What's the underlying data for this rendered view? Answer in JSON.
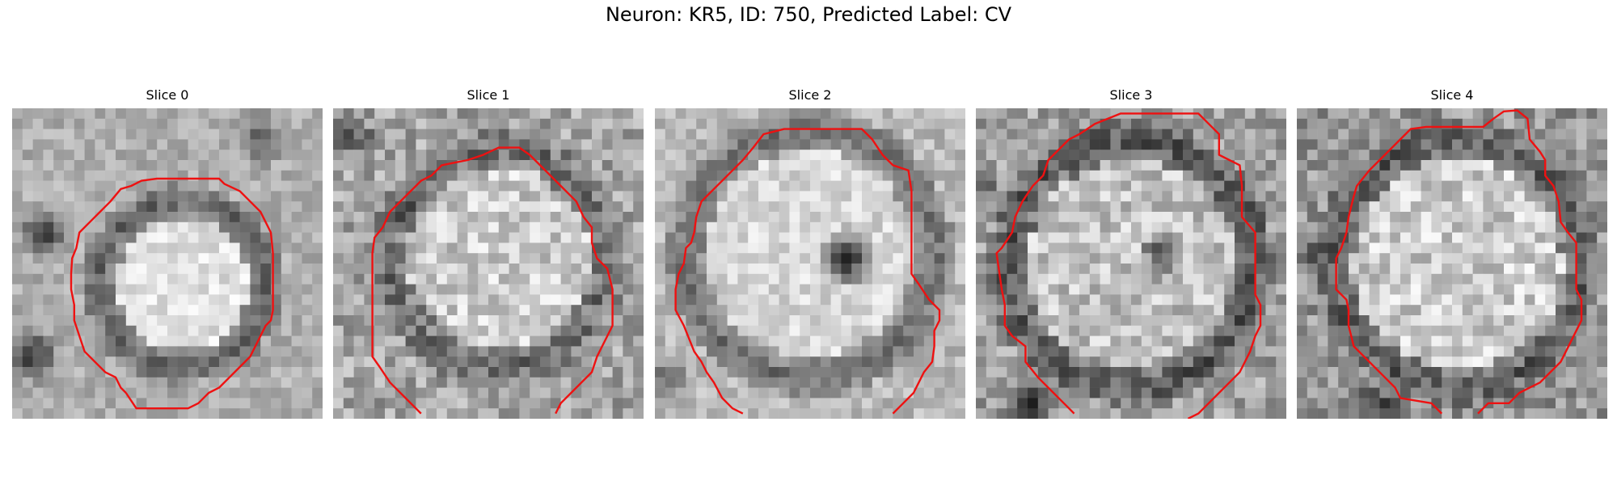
{
  "figure": {
    "title": "Neuron: KR5, ID: 750, Predicted Label: CV"
  },
  "panels": [
    {
      "title": "Slice 0",
      "image": "grayscale-microscopy-slice-with-red-cell-outline"
    },
    {
      "title": "Slice 1",
      "image": "grayscale-microscopy-slice-with-red-cell-outline"
    },
    {
      "title": "Slice 2",
      "image": "grayscale-microscopy-slice-with-red-cell-outline"
    },
    {
      "title": "Slice 3",
      "image": "grayscale-microscopy-slice-with-red-cell-outline"
    },
    {
      "title": "Slice 4",
      "image": "grayscale-microscopy-slice-with-red-cell-outline"
    }
  ],
  "colors": {
    "outline": "#ee1111",
    "background": "#ffffff",
    "text": "#000000"
  }
}
